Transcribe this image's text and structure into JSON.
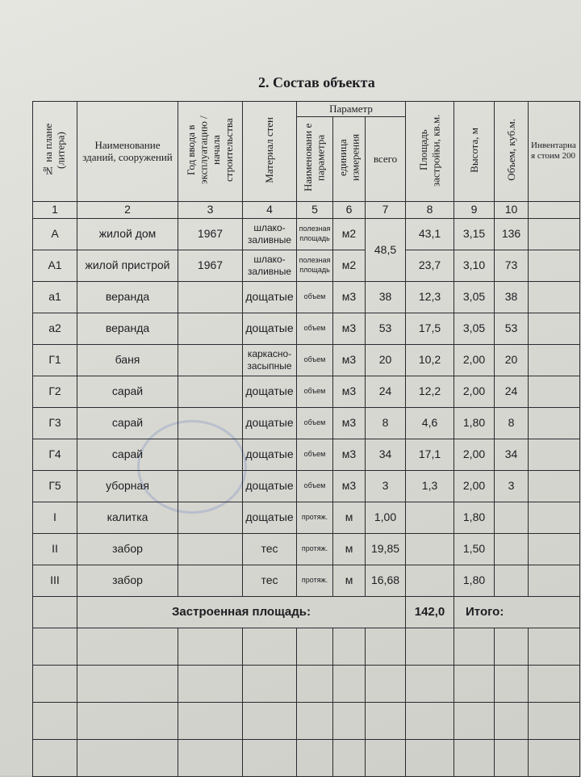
{
  "title": "2. Состав объекта",
  "headers": {
    "col1": "№ на плане (литера)",
    "col2": "Наименование зданий, сооружений",
    "col3": "Год ввода в эксплуатацию / начала строительства",
    "col4": "Материал стен",
    "param": "Параметр",
    "col5": "Наименовани е параметра",
    "col6": "единица измерения",
    "col7": "всего",
    "col8": "Площадь застройки, кв.м.",
    "col9": "Высота, м",
    "col10": "Объем, куб.м.",
    "col11": "Инвентарна я стоим 200"
  },
  "col_numbers": [
    "1",
    "2",
    "3",
    "4",
    "5",
    "6",
    "7",
    "8",
    "9",
    "10"
  ],
  "rows": [
    {
      "lit": "А",
      "name": "жилой дом",
      "year": "1967",
      "mat": "шлако-заливные",
      "param": "полезная площадь",
      "unit": "м2",
      "total": "48,5",
      "area": "43,1",
      "height": "3,15",
      "vol": "136"
    },
    {
      "lit": "А1",
      "name": "жилой пристрой",
      "year": "1967",
      "mat": "шлако-заливные",
      "param": "полезная площадь",
      "unit": "м2",
      "total": "",
      "area": "23,7",
      "height": "3,10",
      "vol": "73"
    },
    {
      "lit": "а1",
      "name": "веранда",
      "year": "",
      "mat": "дощатые",
      "param": "объем",
      "unit": "м3",
      "total": "38",
      "area": "12,3",
      "height": "3,05",
      "vol": "38"
    },
    {
      "lit": "а2",
      "name": "веранда",
      "year": "",
      "mat": "дощатые",
      "param": "объем",
      "unit": "м3",
      "total": "53",
      "area": "17,5",
      "height": "3,05",
      "vol": "53"
    },
    {
      "lit": "Г1",
      "name": "баня",
      "year": "",
      "mat": "каркасно-засыпные",
      "param": "объем",
      "unit": "м3",
      "total": "20",
      "area": "10,2",
      "height": "2,00",
      "vol": "20"
    },
    {
      "lit": "Г2",
      "name": "сарай",
      "year": "",
      "mat": "дощатые",
      "param": "объем",
      "unit": "м3",
      "total": "24",
      "area": "12,2",
      "height": "2,00",
      "vol": "24"
    },
    {
      "lit": "Г3",
      "name": "сарай",
      "year": "",
      "mat": "дощатые",
      "param": "объем",
      "unit": "м3",
      "total": "8",
      "area": "4,6",
      "height": "1,80",
      "vol": "8"
    },
    {
      "lit": "Г4",
      "name": "сарай",
      "year": "",
      "mat": "дощатые",
      "param": "объем",
      "unit": "м3",
      "total": "34",
      "area": "17,1",
      "height": "2,00",
      "vol": "34"
    },
    {
      "lit": "Г5",
      "name": "уборная",
      "year": "",
      "mat": "дощатые",
      "param": "объем",
      "unit": "м3",
      "total": "3",
      "area": "1,3",
      "height": "2,00",
      "vol": "3"
    },
    {
      "lit": "I",
      "name": "калитка",
      "year": "",
      "mat": "дощатые",
      "param": "протяж.",
      "unit": "м",
      "total": "1,00",
      "area": "",
      "height": "1,80",
      "vol": ""
    },
    {
      "lit": "II",
      "name": "забор",
      "year": "",
      "mat": "тес",
      "param": "протяж.",
      "unit": "м",
      "total": "19,85",
      "area": "",
      "height": "1,50",
      "vol": ""
    },
    {
      "lit": "III",
      "name": "забор",
      "year": "",
      "mat": "тес",
      "param": "протяж.",
      "unit": "м",
      "total": "16,68",
      "area": "",
      "height": "1,80",
      "vol": ""
    }
  ],
  "footer": {
    "label": "Застроенная площадь:",
    "value": "142,0",
    "total_label": "Итого:"
  }
}
